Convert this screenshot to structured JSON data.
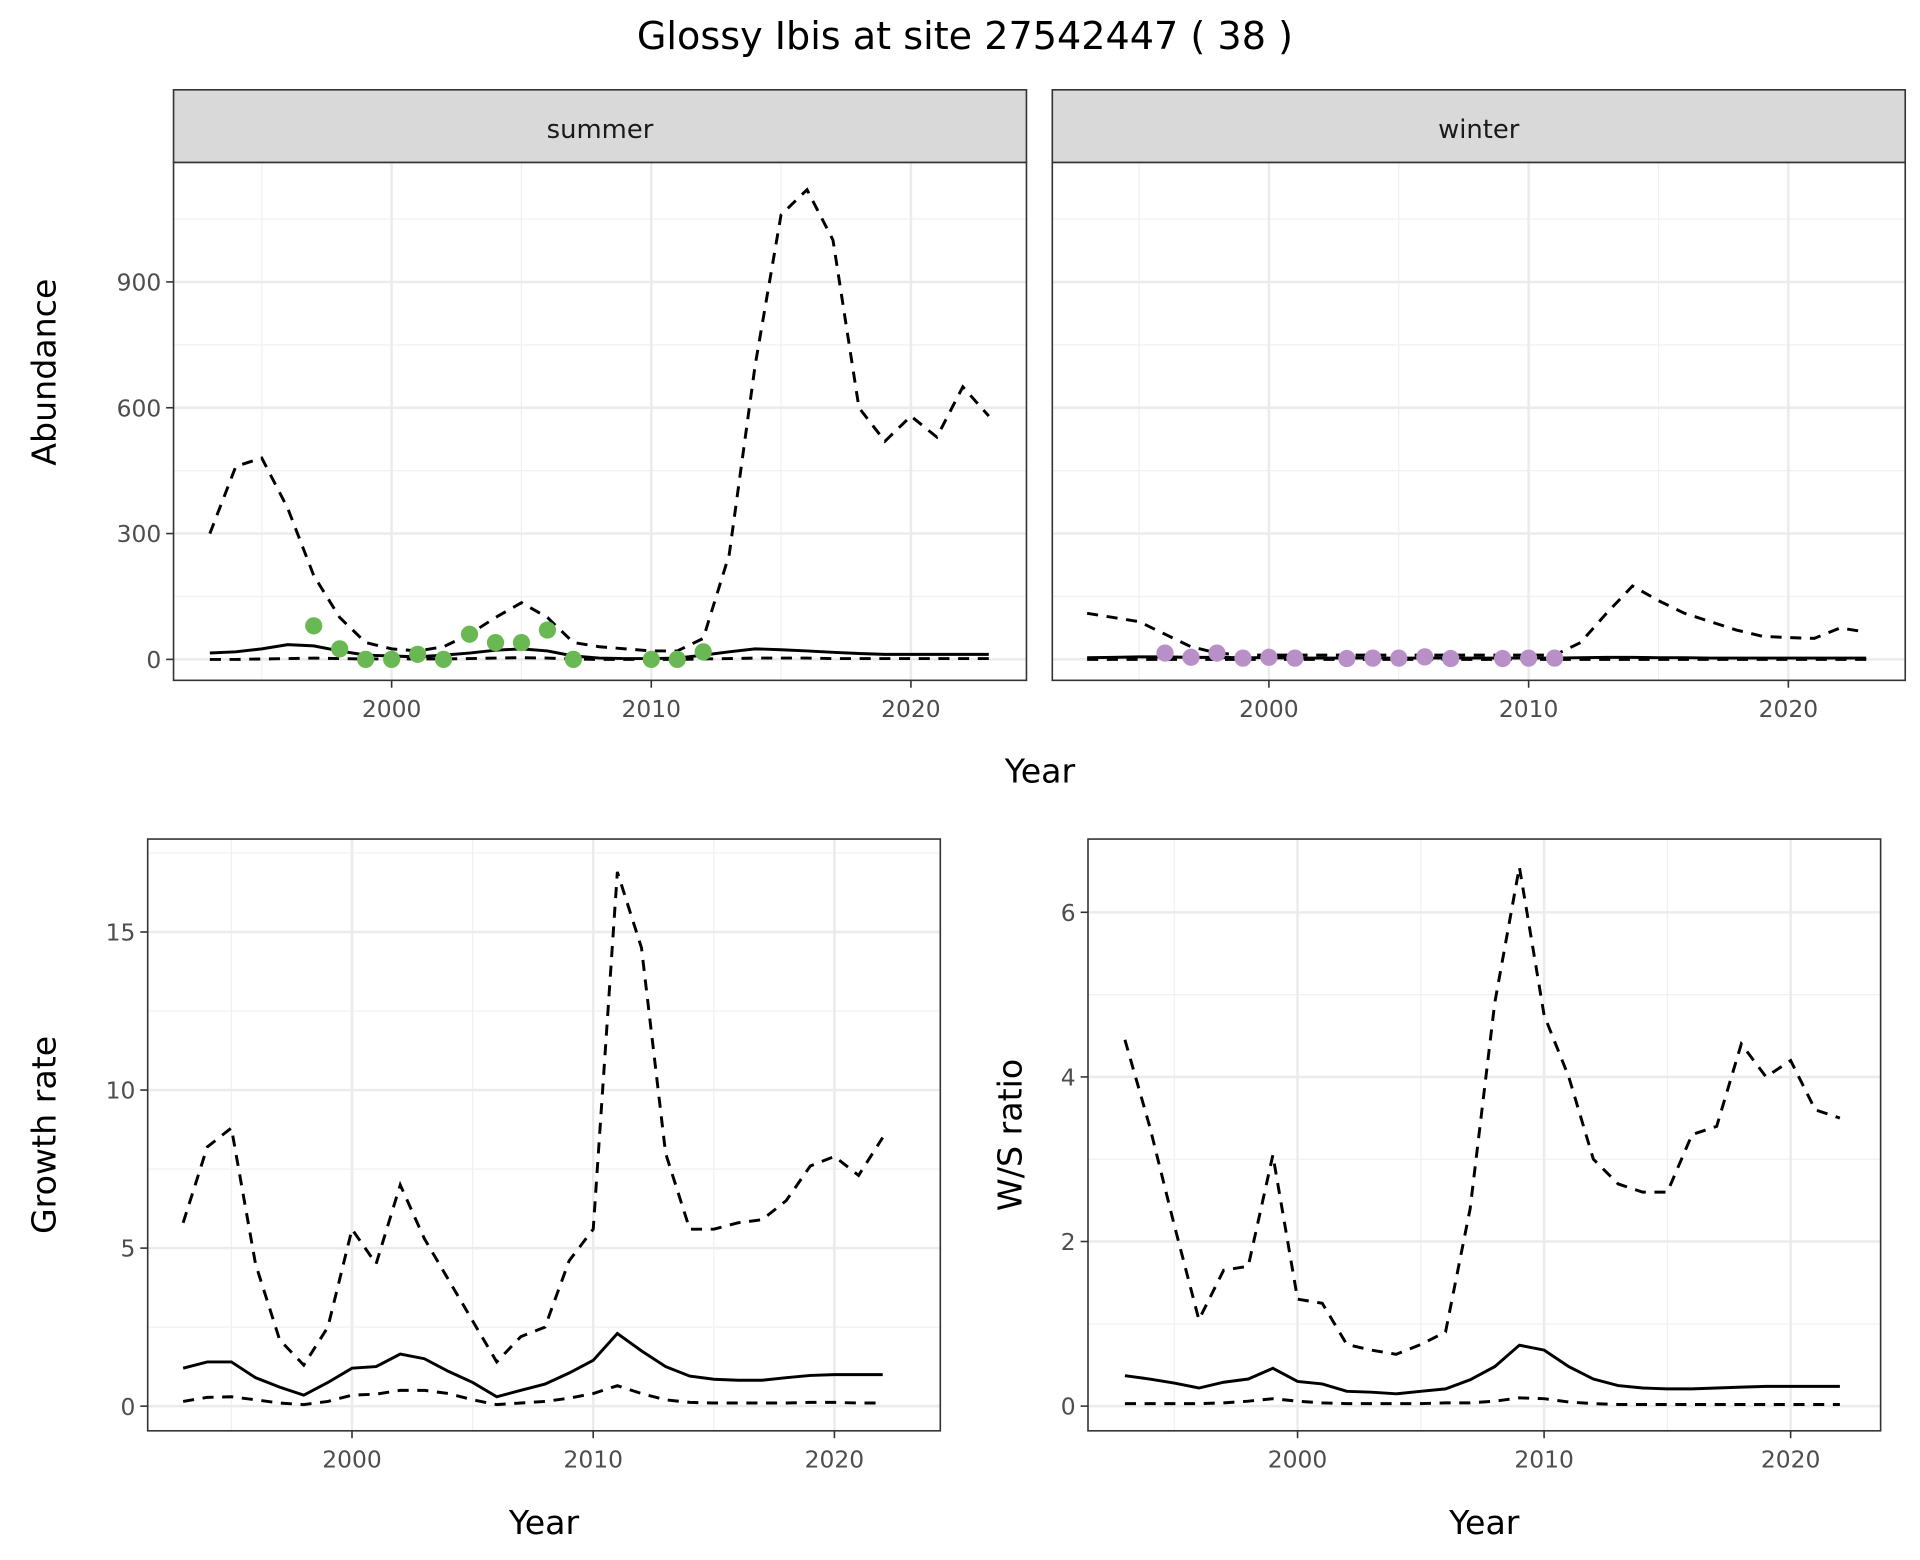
{
  "title": "Glossy Ibis at site 27542447 ( 38 )",
  "colors": {
    "summer_points": "#6ab854",
    "winter_points": "#b98fc8",
    "line": "#000000",
    "strip": "#d9d9d9"
  },
  "chart_data": [
    {
      "id": "summer",
      "type": "line",
      "strip": "summer",
      "ylabel": "Abundance",
      "xlabel": "Year",
      "xlim": [
        1991.6,
        2024.45
      ],
      "ylim": [
        -50,
        1185
      ],
      "xticks": [
        2000,
        2010,
        2020
      ],
      "xminor": [
        1995,
        2005,
        2015
      ],
      "yticks": [
        0,
        300,
        600,
        900
      ],
      "yminor": [
        150,
        450,
        750,
        1050
      ],
      "x": [
        1993,
        1994,
        1995,
        1996,
        1997,
        1998,
        1999,
        2000,
        2001,
        2002,
        2003,
        2004,
        2005,
        2006,
        2007,
        2008,
        2009,
        2010,
        2011,
        2012,
        2013,
        2014,
        2015,
        2016,
        2017,
        2018,
        2019,
        2020,
        2021,
        2022,
        2023
      ],
      "series": [
        {
          "name": "mean",
          "style": "solid",
          "values": [
            15,
            18,
            25,
            35,
            32,
            20,
            10,
            8,
            6,
            10,
            15,
            22,
            25,
            20,
            8,
            3,
            2,
            2,
            3,
            10,
            18,
            25,
            23,
            20,
            17,
            14,
            12,
            12,
            12,
            12,
            12
          ]
        },
        {
          "name": "upper",
          "style": "dashed",
          "values": [
            300,
            460,
            480,
            360,
            200,
            100,
            40,
            25,
            20,
            30,
            60,
            100,
            135,
            100,
            40,
            30,
            25,
            20,
            20,
            50,
            250,
            700,
            1060,
            1120,
            1000,
            600,
            520,
            580,
            530,
            650,
            580
          ]
        },
        {
          "name": "lower",
          "style": "dashed",
          "values": [
            0,
            0,
            1,
            2,
            3,
            2,
            1,
            1,
            1,
            1,
            2,
            3,
            4,
            3,
            1,
            0,
            0,
            0,
            0,
            1,
            2,
            3,
            3,
            3,
            2,
            2,
            2,
            2,
            2,
            2,
            2
          ]
        }
      ],
      "points": {
        "x": [
          1997,
          1998,
          1999,
          2000,
          2001,
          2002,
          2003,
          2004,
          2005,
          2006,
          2007,
          2010,
          2011,
          2012
        ],
        "y": [
          80,
          25,
          0,
          0,
          12,
          0,
          60,
          40,
          40,
          70,
          0,
          0,
          0,
          18
        ],
        "color": "#6ab854"
      }
    },
    {
      "id": "winter",
      "type": "line",
      "strip": "winter",
      "ylabel": "",
      "xlabel": "Year",
      "xlim": [
        1991.66,
        2024.5
      ],
      "ylim": [
        -50,
        1185
      ],
      "xticks": [
        2000,
        2010,
        2020
      ],
      "xminor": [
        1995,
        2005,
        2015
      ],
      "yticks": [
        0,
        300,
        600,
        900
      ],
      "yminor": [
        150,
        450,
        750,
        1050
      ],
      "show_yticklabels": false,
      "x": [
        1993,
        1994,
        1995,
        1996,
        1997,
        1998,
        1999,
        2000,
        2001,
        2002,
        2003,
        2004,
        2005,
        2006,
        2007,
        2008,
        2009,
        2010,
        2011,
        2012,
        2013,
        2014,
        2015,
        2016,
        2017,
        2018,
        2019,
        2020,
        2021,
        2022,
        2023
      ],
      "series": [
        {
          "name": "mean",
          "style": "solid",
          "values": [
            4,
            5,
            6,
            6,
            5,
            5,
            4,
            4,
            3,
            3,
            3,
            3,
            3,
            3,
            3,
            3,
            3,
            3,
            3,
            4,
            5,
            5,
            4,
            4,
            3,
            3,
            3,
            3,
            3,
            3,
            3
          ]
        },
        {
          "name": "upper",
          "style": "dashed",
          "values": [
            110,
            100,
            90,
            60,
            30,
            15,
            10,
            10,
            10,
            10,
            10,
            10,
            10,
            10,
            10,
            10,
            10,
            10,
            10,
            40,
            110,
            175,
            140,
            110,
            90,
            70,
            55,
            52,
            50,
            75,
            65
          ]
        },
        {
          "name": "lower",
          "style": "dashed",
          "values": [
            0,
            0,
            0,
            0,
            0,
            0,
            0,
            0,
            0,
            0,
            0,
            0,
            0,
            0,
            0,
            0,
            0,
            0,
            0,
            0,
            0,
            0,
            0,
            0,
            0,
            0,
            0,
            0,
            0,
            0,
            0
          ]
        }
      ],
      "points": {
        "x": [
          1996,
          1997,
          1998,
          1999,
          2000,
          2001,
          2003,
          2004,
          2005,
          2006,
          2007,
          2009,
          2010,
          2011
        ],
        "y": [
          15,
          5,
          15,
          3,
          5,
          3,
          2,
          3,
          3,
          6,
          2,
          2,
          3,
          3
        ],
        "color": "#b98fc8"
      }
    },
    {
      "id": "growth",
      "type": "line",
      "strip": "",
      "ylabel": "Growth rate",
      "xlabel": "Year",
      "xlim": [
        1991.53,
        2024.39
      ],
      "ylim": [
        -0.78,
        17.94
      ],
      "xticks": [
        2000,
        2010,
        2020
      ],
      "xminor": [
        1995,
        2005,
        2015
      ],
      "yticks": [
        0,
        5,
        10,
        15
      ],
      "yminor": [
        2.5,
        7.5,
        12.5,
        17.5
      ],
      "x": [
        1993,
        1994,
        1995,
        1996,
        1997,
        1998,
        1999,
        2000,
        2001,
        2002,
        2003,
        2004,
        2005,
        2006,
        2007,
        2008,
        2009,
        2010,
        2011,
        2012,
        2013,
        2014,
        2015,
        2016,
        2017,
        2018,
        2019,
        2020,
        2021,
        2022
      ],
      "series": [
        {
          "name": "mean",
          "style": "solid",
          "values": [
            1.2,
            1.4,
            1.4,
            0.9,
            0.6,
            0.35,
            0.75,
            1.2,
            1.25,
            1.65,
            1.5,
            1.1,
            0.75,
            0.3,
            0.5,
            0.7,
            1.05,
            1.45,
            2.3,
            1.75,
            1.25,
            0.95,
            0.85,
            0.82,
            0.82,
            0.9,
            0.97,
            1.0,
            1.0,
            1.0
          ]
        },
        {
          "name": "upper",
          "style": "dashed",
          "values": [
            5.8,
            8.2,
            8.8,
            4.5,
            2.1,
            1.3,
            2.5,
            5.6,
            4.5,
            7.0,
            5.3,
            4.0,
            2.7,
            1.4,
            2.2,
            2.5,
            4.6,
            5.6,
            16.9,
            14.5,
            8.0,
            5.6,
            5.6,
            5.8,
            5.9,
            6.5,
            7.6,
            7.9,
            7.3,
            8.5
          ]
        },
        {
          "name": "lower",
          "style": "dashed",
          "values": [
            0.15,
            0.28,
            0.3,
            0.2,
            0.1,
            0.05,
            0.15,
            0.35,
            0.38,
            0.5,
            0.5,
            0.4,
            0.2,
            0.05,
            0.1,
            0.15,
            0.25,
            0.4,
            0.65,
            0.4,
            0.2,
            0.12,
            0.1,
            0.1,
            0.1,
            0.1,
            0.12,
            0.12,
            0.1,
            0.1
          ]
        }
      ]
    },
    {
      "id": "ratio",
      "type": "line",
      "strip": "",
      "ylabel": "W/S ratio",
      "xlabel": "Year",
      "xlim": [
        1991.5,
        2023.65
      ],
      "ylim": [
        -0.3,
        6.89
      ],
      "xticks": [
        2000,
        2010,
        2020
      ],
      "xminor": [
        1995,
        2005,
        2015
      ],
      "yticks": [
        0,
        2,
        4,
        6
      ],
      "yminor": [
        1,
        3,
        5
      ],
      "x": [
        1993,
        1994,
        1995,
        1996,
        1997,
        1998,
        1999,
        2000,
        2001,
        2002,
        2003,
        2004,
        2005,
        2006,
        2007,
        2008,
        2009,
        2010,
        2011,
        2012,
        2013,
        2014,
        2015,
        2016,
        2017,
        2018,
        2019,
        2020,
        2021,
        2022
      ],
      "series": [
        {
          "name": "mean",
          "style": "solid",
          "values": [
            0.37,
            0.33,
            0.28,
            0.22,
            0.29,
            0.33,
            0.46,
            0.3,
            0.27,
            0.18,
            0.17,
            0.15,
            0.18,
            0.21,
            0.32,
            0.48,
            0.74,
            0.68,
            0.48,
            0.33,
            0.25,
            0.22,
            0.21,
            0.21,
            0.22,
            0.23,
            0.24,
            0.24,
            0.24,
            0.24
          ]
        },
        {
          "name": "upper",
          "style": "dashed",
          "values": [
            4.45,
            3.4,
            2.2,
            1.05,
            1.65,
            1.7,
            3.05,
            1.3,
            1.25,
            0.75,
            0.68,
            0.63,
            0.75,
            0.9,
            2.4,
            4.9,
            6.55,
            4.75,
            4.0,
            3.0,
            2.7,
            2.6,
            2.6,
            3.3,
            3.4,
            4.4,
            4.0,
            4.2,
            3.6,
            3.5
          ]
        },
        {
          "name": "lower",
          "style": "dashed",
          "values": [
            0.03,
            0.03,
            0.03,
            0.03,
            0.04,
            0.06,
            0.09,
            0.06,
            0.04,
            0.03,
            0.03,
            0.03,
            0.03,
            0.04,
            0.04,
            0.06,
            0.1,
            0.09,
            0.05,
            0.03,
            0.02,
            0.02,
            0.02,
            0.02,
            0.02,
            0.02,
            0.02,
            0.02,
            0.02,
            0.02
          ]
        }
      ]
    }
  ]
}
